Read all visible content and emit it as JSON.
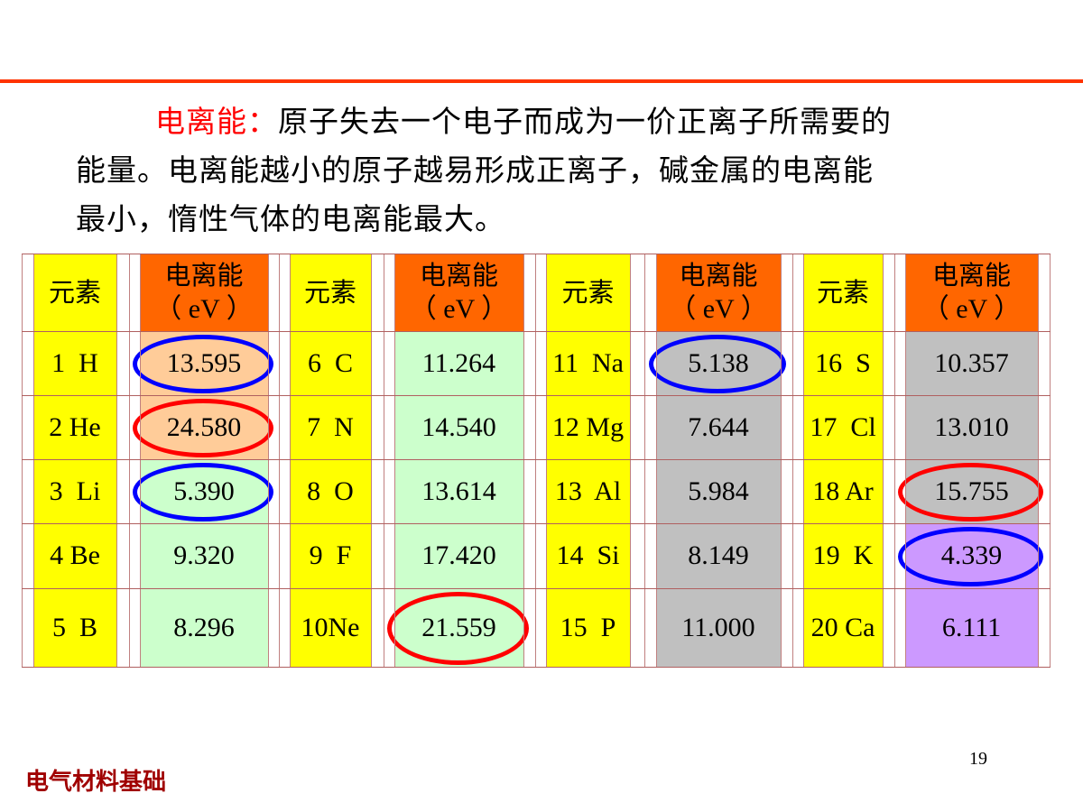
{
  "slide": {
    "definition_term": "电离能：",
    "paragraph_line1": "原子失去一个电子而成为一价正离子所需要的",
    "paragraph_line2": "能量。电离能越小的原子越易形成正离子，碱金属的电离能",
    "paragraph_line3": "最小，惰性气体的电离能最大。",
    "footer": "电气材料基础",
    "page_number": "19",
    "accent_color": "#FF3300"
  },
  "table": {
    "header_element": "元素",
    "header_energy": "电离能",
    "header_unit": "（ eV ）",
    "colors": {
      "element_bg": "#FFFF00",
      "header_bg": "#FF6600",
      "peach": "#FFCC99",
      "green": "#CCFFCC",
      "gray": "#C0C0C0",
      "purple": "#CC99FF",
      "ring_blue": "#0000FF",
      "ring_red": "#FF0000"
    },
    "groups": [
      {
        "rows": [
          {
            "element": "1  H",
            "energy": "13.595",
            "bg": "peach",
            "ring": "blue"
          },
          {
            "element": "2 He",
            "energy": "24.580",
            "bg": "peach",
            "ring": "red"
          },
          {
            "element": "3  Li",
            "energy": "5.390",
            "bg": "green",
            "ring": "blue"
          },
          {
            "element": "4 Be",
            "energy": "9.320",
            "bg": "green",
            "ring": ""
          },
          {
            "element": "5  B",
            "energy": "8.296",
            "bg": "green",
            "ring": ""
          }
        ]
      },
      {
        "rows": [
          {
            "element": "6  C",
            "energy": "11.264",
            "bg": "green",
            "ring": ""
          },
          {
            "element": "7  N",
            "energy": "14.540",
            "bg": "green",
            "ring": ""
          },
          {
            "element": "8  O",
            "energy": "13.614",
            "bg": "green",
            "ring": ""
          },
          {
            "element": "9  F",
            "energy": "17.420",
            "bg": "green",
            "ring": ""
          },
          {
            "element": "10Ne",
            "energy": "21.559",
            "bg": "green",
            "ring": "red"
          }
        ]
      },
      {
        "rows": [
          {
            "element": "11  Na",
            "energy": "5.138",
            "bg": "gray",
            "ring": "blue"
          },
          {
            "element": "12 Mg",
            "energy": "7.644",
            "bg": "gray",
            "ring": ""
          },
          {
            "element": "13  Al",
            "energy": "5.984",
            "bg": "gray",
            "ring": ""
          },
          {
            "element": "14  Si",
            "energy": "8.149",
            "bg": "gray",
            "ring": ""
          },
          {
            "element": "15  P",
            "energy": "11.000",
            "bg": "gray",
            "ring": ""
          }
        ]
      },
      {
        "rows": [
          {
            "element": "16  S",
            "energy": "10.357",
            "bg": "gray",
            "ring": ""
          },
          {
            "element": "17  Cl",
            "energy": "13.010",
            "bg": "gray",
            "ring": ""
          },
          {
            "element": "18 Ar",
            "energy": "15.755",
            "bg": "gray",
            "ring": "red"
          },
          {
            "element": "19  K",
            "energy": "4.339",
            "bg": "purple",
            "ring": "blue"
          },
          {
            "element": "20 Ca",
            "energy": "6.111",
            "bg": "purple",
            "ring": ""
          }
        ]
      }
    ]
  }
}
